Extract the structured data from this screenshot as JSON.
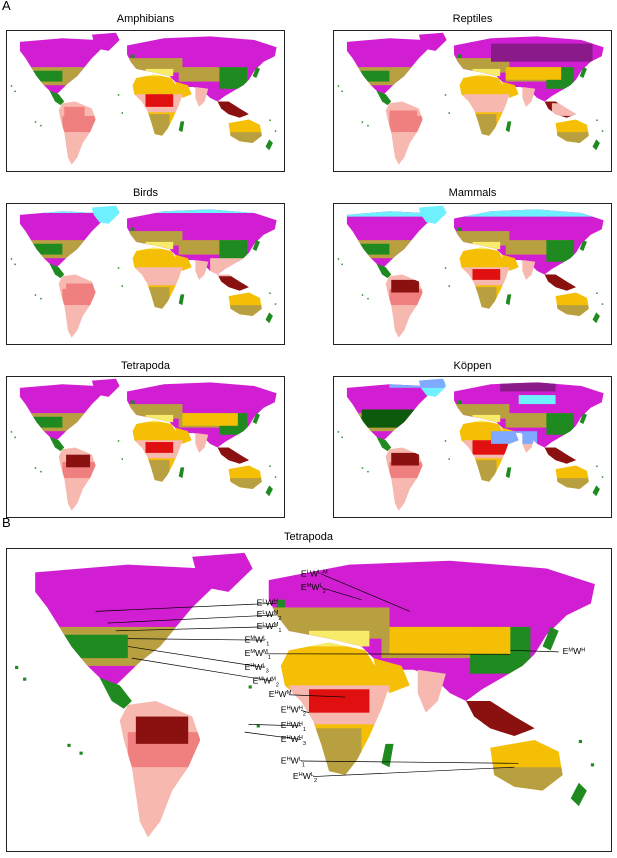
{
  "panels": {
    "a_letter": "A",
    "b_letter": "B"
  },
  "small_maps": [
    {
      "title": "Amphibians",
      "variant": "amph"
    },
    {
      "title": "Reptiles",
      "variant": "rept"
    },
    {
      "title": "Birds",
      "variant": "bird"
    },
    {
      "title": "Mammals",
      "variant": "mamm"
    },
    {
      "title": "Tetrapoda",
      "variant": "tetra"
    },
    {
      "title": "Köppen",
      "variant": "kopp"
    }
  ],
  "big_map": {
    "title": "Tetrapoda",
    "labels": [
      {
        "text": "E",
        "sup": "L",
        "mid": "W",
        "sup2": "L-M",
        "sub": ""
      },
      {
        "text": "E",
        "sup": "M",
        "mid": "W",
        "sup2": "L",
        "sub": "2"
      },
      {
        "text": "E",
        "sup": "L",
        "mid": "W",
        "sup2": "H",
        "sub": ""
      },
      {
        "text": "E",
        "sup": "L",
        "mid": "W",
        "sup2": "M",
        "sub": "2"
      },
      {
        "text": "E",
        "sup": "L",
        "mid": "W",
        "sup2": "M",
        "sub": "1"
      },
      {
        "text": "E",
        "sup": "M",
        "mid": "W",
        "sup2": "L",
        "sub": "1"
      },
      {
        "text": "E",
        "sup": "M",
        "mid": "W",
        "sup2": "M",
        "sub": "1"
      },
      {
        "text": "E",
        "sup": "H",
        "mid": "W",
        "sup2": "L",
        "sub": "3"
      },
      {
        "text": "E",
        "sup": "M",
        "mid": "W",
        "sup2": "M",
        "sub": "2"
      },
      {
        "text": "E",
        "sup": "H",
        "mid": "W",
        "sup2": "M",
        "sub": ""
      },
      {
        "text": "E",
        "sup": "H",
        "mid": "W",
        "sup2": "H",
        "sub": "2"
      },
      {
        "text": "E",
        "sup": "H",
        "mid": "W",
        "sup2": "H",
        "sub": "1"
      },
      {
        "text": "E",
        "sup": "H",
        "mid": "W",
        "sup2": "H",
        "sub": "3"
      },
      {
        "text": "E",
        "sup": "H",
        "mid": "W",
        "sup2": "L",
        "sub": "1"
      },
      {
        "text": "E",
        "sup": "H",
        "mid": "W",
        "sup2": "L",
        "sub": "2"
      },
      {
        "text": "E",
        "sup": "M",
        "mid": "W",
        "sup2": "H",
        "sub": ""
      }
    ]
  },
  "colors": {
    "boreal": "#d21ed2",
    "boreal_dark": "#8a1a8a",
    "desert": "#f5bf05",
    "pink": "#f7b8b0",
    "salmon": "#f08080",
    "red": "#e01010",
    "darkred": "#8b1010",
    "olive": "#b8a040",
    "green": "#1f8a1f",
    "darkgreen": "#0d5a0d",
    "yellow": "#f7ec6a",
    "cyan": "#6ff0ff",
    "ice": "#7faaff",
    "tan": "#c79a52"
  }
}
